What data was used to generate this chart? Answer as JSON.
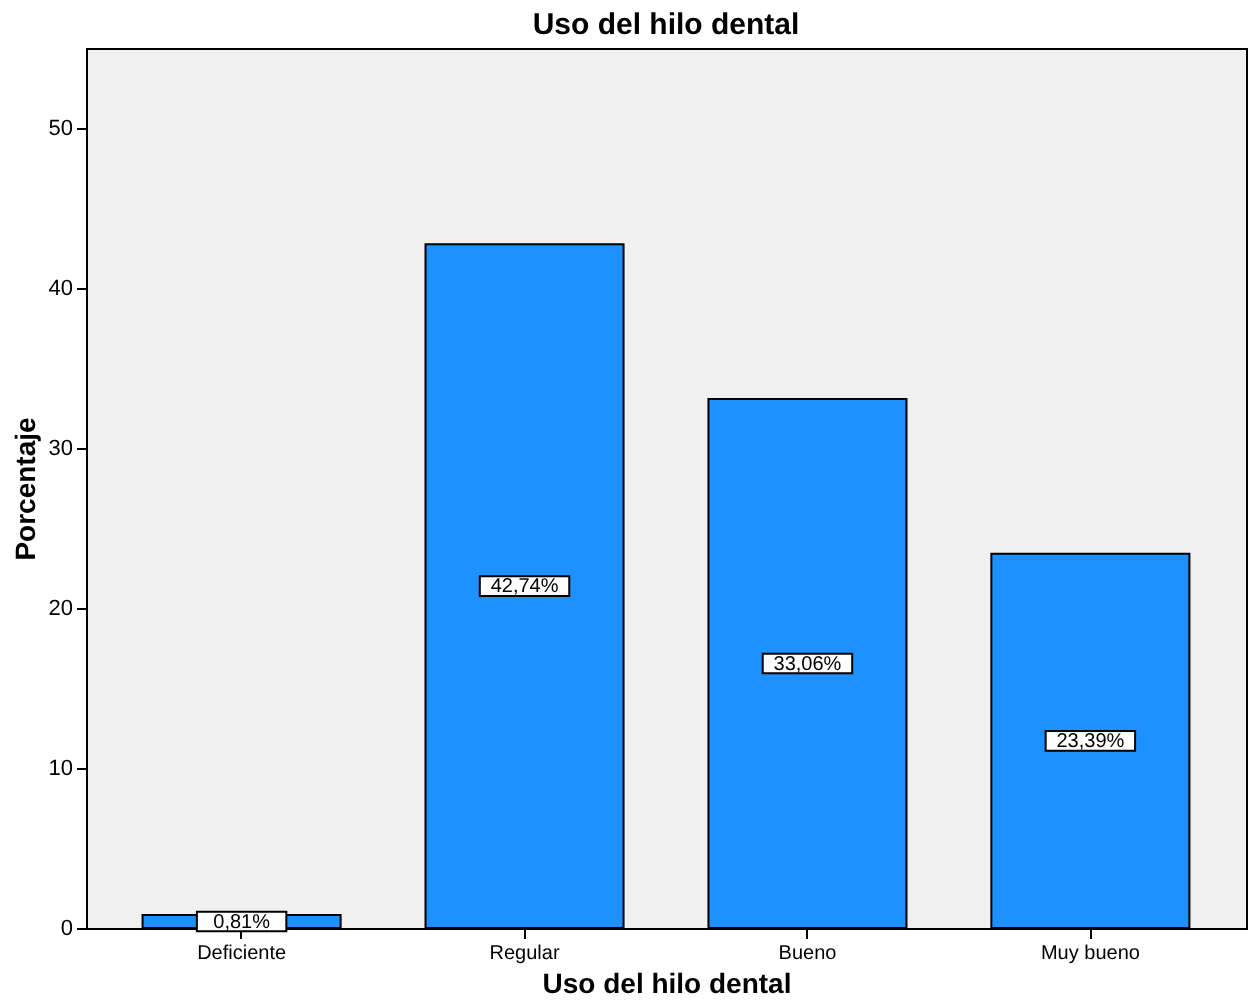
{
  "chart_data": {
    "type": "bar",
    "title": "Uso del hilo dental",
    "xlabel": "Uso del hilo dental",
    "ylabel": "Porcentaje",
    "categories": [
      "Deficiente",
      "Regular",
      "Bueno",
      "Muy bueno"
    ],
    "values": [
      0.81,
      42.74,
      33.06,
      23.39
    ],
    "value_labels": [
      "0,81%",
      "42,74%",
      "33,06%",
      "23,39%"
    ],
    "color": "#1e90ff",
    "ylim": [
      0,
      55
    ],
    "yticks": [
      0,
      10,
      20,
      30,
      40,
      50
    ],
    "grid": false
  }
}
